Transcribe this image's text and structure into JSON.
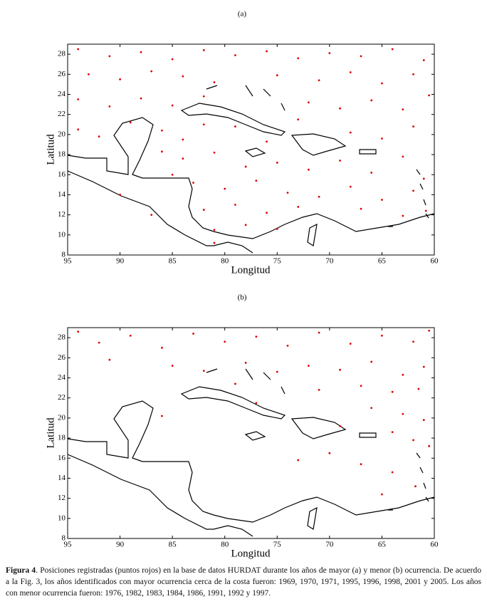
{
  "chart_data": [
    {
      "type": "scatter",
      "title": "(a)",
      "xlabel": "Longitud",
      "ylabel": "Latitud",
      "xlim": [
        95,
        60
      ],
      "ylim": [
        8,
        29
      ],
      "xticks": [
        95,
        90,
        85,
        80,
        75,
        70,
        65,
        60
      ],
      "yticks": [
        8,
        10,
        12,
        14,
        16,
        18,
        20,
        22,
        24,
        26,
        28
      ],
      "series": [
        {
          "color": "#e00000",
          "x": [
            94,
            91,
            88,
            85,
            82,
            79,
            76,
            73,
            70,
            67,
            64,
            61,
            93,
            90,
            87,
            84,
            81,
            75,
            71,
            68,
            65,
            62,
            94,
            91,
            88,
            85,
            82,
            72,
            69,
            66,
            63,
            60.5,
            94,
            92,
            89,
            86,
            84,
            82,
            79,
            76,
            73,
            68,
            65,
            62,
            86,
            84,
            81,
            78,
            75,
            72,
            69,
            66,
            63,
            61,
            85,
            83,
            80,
            77,
            74,
            71,
            68,
            65,
            62,
            82,
            79,
            76,
            73,
            67,
            63,
            60.8,
            81,
            78,
            75,
            81,
            87,
            90
          ],
          "values": [
            28.5,
            27.8,
            28.2,
            27.5,
            28.4,
            27.9,
            28.3,
            27.6,
            28.1,
            27.8,
            28.5,
            27.4,
            26,
            25.5,
            26.3,
            25.8,
            25.2,
            25.9,
            25.4,
            26.2,
            25.1,
            26,
            23.5,
            22.8,
            23.6,
            22.9,
            23.8,
            23.2,
            22.6,
            23.4,
            22.5,
            23.9,
            20.5,
            19.8,
            21.2,
            20.4,
            19.5,
            21,
            20.8,
            19.3,
            21.5,
            20.2,
            19.6,
            20.8,
            18.3,
            17.6,
            18.2,
            16.8,
            17.2,
            16.5,
            17.4,
            16.2,
            17.8,
            15.6,
            16,
            15.2,
            14.6,
            15.4,
            14.2,
            13.8,
            14.8,
            13.5,
            14.4,
            12.5,
            13,
            12.2,
            12.8,
            12.6,
            11.9,
            12.4,
            10.5,
            11,
            10.6,
            9.2,
            12,
            14
          ]
        }
      ]
    },
    {
      "type": "scatter",
      "title": "(b)",
      "xlabel": "Longitud",
      "ylabel": "Latitud",
      "xlim": [
        95,
        60
      ],
      "ylim": [
        8,
        29
      ],
      "xticks": [
        95,
        90,
        85,
        80,
        75,
        70,
        65,
        60
      ],
      "yticks": [
        8,
        10,
        12,
        14,
        16,
        18,
        20,
        22,
        24,
        26,
        28
      ],
      "series": [
        {
          "color": "#e00000",
          "x": [
            94,
            92,
            89,
            86,
            83,
            80,
            77,
            74,
            71,
            68,
            65,
            62,
            60.5,
            91,
            85,
            82,
            78,
            75,
            72,
            69,
            66,
            63,
            61,
            79,
            71,
            67,
            64,
            61.5,
            66,
            63,
            61,
            64,
            62,
            60.5,
            70,
            67,
            64,
            61.8,
            73,
            65,
            86,
            77,
            69
          ],
          "values": [
            28.6,
            27.5,
            28.2,
            27,
            28.4,
            27.6,
            28.1,
            27.2,
            28.5,
            27.4,
            28.2,
            27.6,
            28.7,
            25.8,
            25.2,
            24.7,
            25.5,
            24.6,
            25.2,
            24.8,
            25.6,
            24.3,
            25.1,
            23.4,
            22.8,
            23.2,
            22.6,
            22.9,
            21,
            20.4,
            19.8,
            18.6,
            17.8,
            17.2,
            16.5,
            15.4,
            14.6,
            13.2,
            15.8,
            12.4,
            20.2,
            21.5,
            19.2
          ]
        }
      ]
    }
  ],
  "caption": {
    "label": "Figura 4",
    "text": ". Posiciones registradas (puntos rojos) en la base de datos HURDAT durante los años de mayor (a) y menor (b) ocurrencia. De acuerdo a la Fig. 3, los años identificados con mayor ocurrencia cerca de la costa fueron: 1969, 1970, 1971, 1995, 1996, 1998, 2001 y 2005. Los años con menor ocurrencia fueron: 1976, 1982, 1983, 1984, 1986, 1991, 1992 y 1997."
  }
}
